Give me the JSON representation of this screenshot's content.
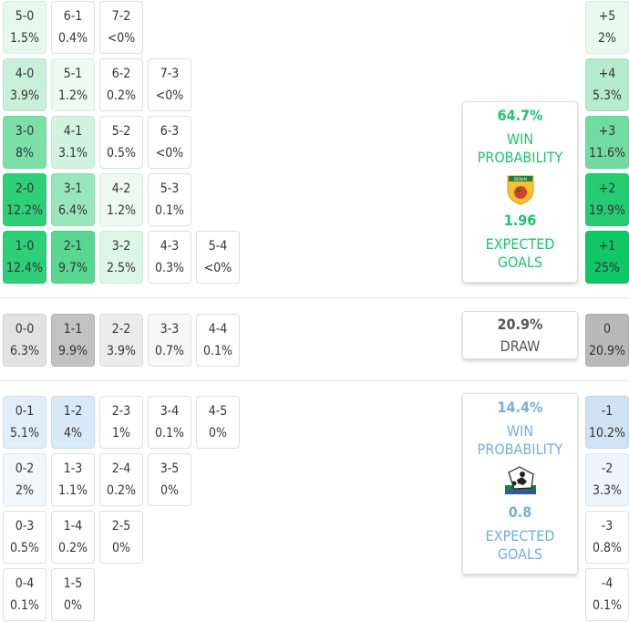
{
  "home_scores": [
    {
      "score": "5-0",
      "prob": "1.5%",
      "bg": "#e6f8ee",
      "border": "#d2eedd"
    },
    {
      "score": "6-1",
      "prob": "0.4%",
      "bg": "#ffffff",
      "border": "#dedede"
    },
    {
      "score": "7-2",
      "prob": "<0%",
      "bg": "#ffffff",
      "border": "#dedede"
    },
    {
      "score": "4-0",
      "prob": "3.9%",
      "bg": "#c8f0d9",
      "border": "#b6e6cb"
    },
    {
      "score": "5-1",
      "prob": "1.2%",
      "bg": "#eef9f3",
      "border": "#d9eee2"
    },
    {
      "score": "6-2",
      "prob": "0.2%",
      "bg": "#ffffff",
      "border": "#dedede"
    },
    {
      "score": "7-3",
      "prob": "<0%",
      "bg": "#ffffff",
      "border": "#dedede"
    },
    {
      "score": "3-0",
      "prob": "8%",
      "bg": "#7ddfa8",
      "border": "#6fd59b"
    },
    {
      "score": "4-1",
      "prob": "3.1%",
      "bg": "#d2f3e0",
      "border": "#c0e9d2"
    },
    {
      "score": "5-2",
      "prob": "0.5%",
      "bg": "#ffffff",
      "border": "#dedede"
    },
    {
      "score": "6-3",
      "prob": "<0%",
      "bg": "#ffffff",
      "border": "#dedede"
    },
    {
      "score": "2-0",
      "prob": "12.2%",
      "bg": "#2fcf79",
      "border": "#28c46f"
    },
    {
      "score": "3-1",
      "prob": "6.4%",
      "bg": "#9ae6bc",
      "border": "#89dcae"
    },
    {
      "score": "4-2",
      "prob": "1.2%",
      "bg": "#eef9f3",
      "border": "#d9eee2"
    },
    {
      "score": "5-3",
      "prob": "0.1%",
      "bg": "#ffffff",
      "border": "#dedede"
    },
    {
      "score": "1-0",
      "prob": "12.4%",
      "bg": "#2dcf78",
      "border": "#27c46e"
    },
    {
      "score": "2-1",
      "prob": "9.7%",
      "bg": "#57d78f",
      "border": "#4bcd84"
    },
    {
      "score": "3-2",
      "prob": "2.5%",
      "bg": "#dcf6e7",
      "border": "#c9ecd8"
    },
    {
      "score": "4-3",
      "prob": "0.3%",
      "bg": "#ffffff",
      "border": "#dedede"
    },
    {
      "score": "5-4",
      "prob": "<0%",
      "bg": "#ffffff",
      "border": "#dedede"
    }
  ],
  "draw_scores": [
    {
      "score": "0-0",
      "prob": "6.3%",
      "bg": "#e2e2e2",
      "border": "#d0d0d0"
    },
    {
      "score": "1-1",
      "prob": "9.9%",
      "bg": "#c2c2c2",
      "border": "#b2b2b2"
    },
    {
      "score": "2-2",
      "prob": "3.9%",
      "bg": "#ececec",
      "border": "#dcdcdc"
    },
    {
      "score": "3-3",
      "prob": "0.7%",
      "bg": "#f7f7f7",
      "border": "#e2e2e2"
    },
    {
      "score": "4-4",
      "prob": "0.1%",
      "bg": "#ffffff",
      "border": "#dedede"
    }
  ],
  "away_scores": [
    {
      "score": "0-1",
      "prob": "5.1%",
      "bg": "#e1eef9",
      "border": "#cfe1f1"
    },
    {
      "score": "1-2",
      "prob": "4%",
      "bg": "#d9e9f7",
      "border": "#c7dcef"
    },
    {
      "score": "2-3",
      "prob": "1%",
      "bg": "#ffffff",
      "border": "#dedede"
    },
    {
      "score": "3-4",
      "prob": "0.1%",
      "bg": "#ffffff",
      "border": "#dedede"
    },
    {
      "score": "4-5",
      "prob": "0%",
      "bg": "#ffffff",
      "border": "#dedede"
    },
    {
      "score": "0-2",
      "prob": "2%",
      "bg": "#f2f7fc",
      "border": "#dbe6f0"
    },
    {
      "score": "1-3",
      "prob": "1.1%",
      "bg": "#ffffff",
      "border": "#dedede"
    },
    {
      "score": "2-4",
      "prob": "0.2%",
      "bg": "#ffffff",
      "border": "#dedede"
    },
    {
      "score": "3-5",
      "prob": "0%",
      "bg": "#ffffff",
      "border": "#dedede"
    },
    {
      "score": "0-3",
      "prob": "0.5%",
      "bg": "#ffffff",
      "border": "#dedede"
    },
    {
      "score": "1-4",
      "prob": "0.2%",
      "bg": "#ffffff",
      "border": "#dedede"
    },
    {
      "score": "2-5",
      "prob": "0%",
      "bg": "#ffffff",
      "border": "#dedede"
    },
    {
      "score": "0-4",
      "prob": "0.1%",
      "bg": "#ffffff",
      "border": "#dedede"
    },
    {
      "score": "1-5",
      "prob": "0%",
      "bg": "#ffffff",
      "border": "#dedede"
    }
  ],
  "margins": [
    {
      "margin": "+5",
      "prob": "2%",
      "bg": "#e9f9f0",
      "border": "#d2eedd"
    },
    {
      "margin": "+4",
      "prob": "5.3%",
      "bg": "#b5ecce",
      "border": "#a3e2bf"
    },
    {
      "margin": "+3",
      "prob": "11.6%",
      "bg": "#72dca0",
      "border": "#64d293"
    },
    {
      "margin": "+2",
      "prob": "19.9%",
      "bg": "#25cc73",
      "border": "#20c16a"
    },
    {
      "margin": "+1",
      "prob": "25%",
      "bg": "#0fc766",
      "border": "#0cbc5e"
    },
    {
      "margin": "0",
      "prob": "20.9%",
      "bg": "#b9b9b9",
      "border": "#aaaaaa"
    },
    {
      "margin": "-1",
      "prob": "10.2%",
      "bg": "#cfe3f4",
      "border": "#bdd6ec"
    },
    {
      "margin": "-2",
      "prob": "3.3%",
      "bg": "#edf4fb",
      "border": "#d9e5f0"
    },
    {
      "margin": "-3",
      "prob": "0.8%",
      "bg": "#ffffff",
      "border": "#dedede"
    },
    {
      "margin": "-4",
      "prob": "0.1%",
      "bg": "#ffffff",
      "border": "#dedede"
    }
  ],
  "home": {
    "win_pct": "64.7%",
    "win_label_1": "WIN",
    "win_label_2": "PROBABILITY",
    "expected_goals": "1.96",
    "xg_label_1": "EXPECTED",
    "xg_label_2": "GOALS",
    "logo_icon": "benin-team-crest-icon",
    "color": "#1fc36c"
  },
  "draw": {
    "pct": "20.9%",
    "label": "DRAW"
  },
  "away": {
    "win_pct": "14.4%",
    "win_label_1": "WIN",
    "win_label_2": "PROBABILITY",
    "expected_goals": "0.8",
    "xg_label_1": "EXPECTED",
    "xg_label_2": "GOALS",
    "logo_icon": "away-team-crest-icon",
    "color": "#76aedb"
  }
}
